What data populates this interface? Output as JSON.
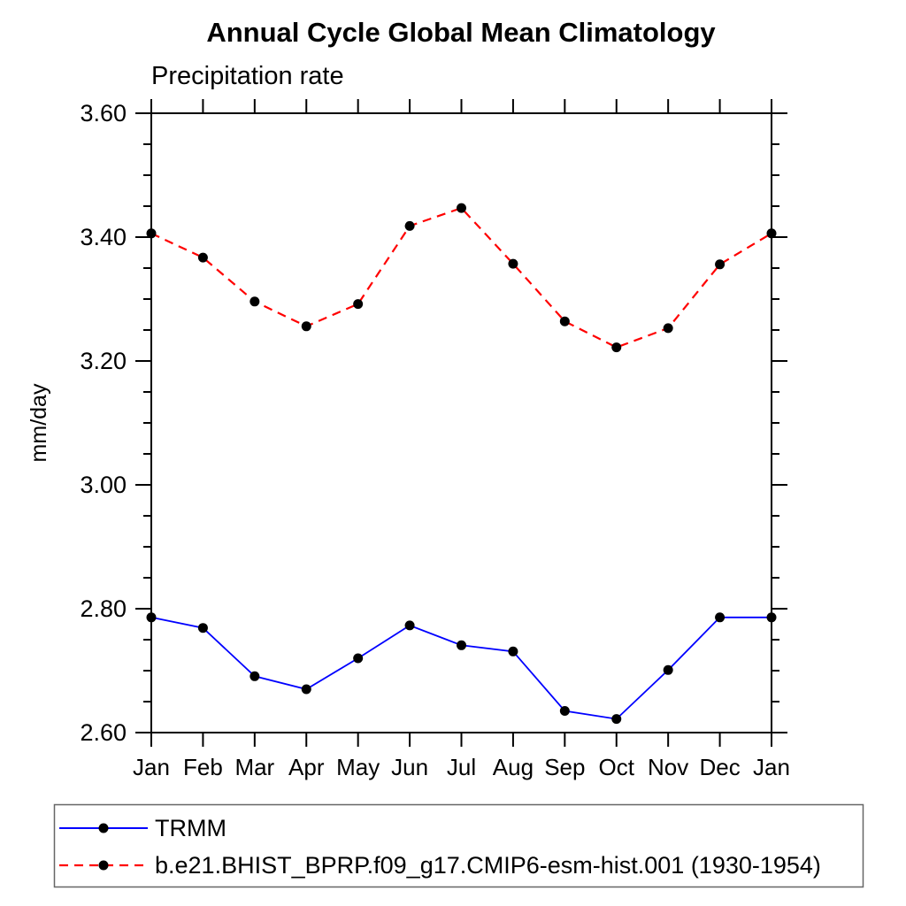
{
  "chart_data": {
    "type": "line",
    "title": "Annual Cycle Global Mean Climatology",
    "subtitle": "Precipitation rate",
    "ylabel": "mm/day",
    "xlabel": "",
    "categories": [
      "Jan",
      "Feb",
      "Mar",
      "Apr",
      "May",
      "Jun",
      "Jul",
      "Aug",
      "Sep",
      "Oct",
      "Nov",
      "Dec",
      "Jan"
    ],
    "series": [
      {
        "name": "TRMM",
        "color": "#0000ff",
        "style": "solid",
        "marker": "filled-circle",
        "marker_color": "#000000",
        "values": [
          2.786,
          2.769,
          2.691,
          2.67,
          2.72,
          2.773,
          2.741,
          2.731,
          2.635,
          2.622,
          2.701,
          2.786,
          2.786
        ]
      },
      {
        "name": "b.e21.BHIST_BPRP.f09_g17.CMIP6-esm-hist.001 (1930-1954)",
        "color": "#ff0000",
        "style": "dashed",
        "marker": "filled-circle",
        "marker_color": "#000000",
        "values": [
          3.406,
          3.367,
          3.296,
          3.256,
          3.292,
          3.418,
          3.447,
          3.357,
          3.264,
          3.222,
          3.253,
          3.356,
          3.406
        ]
      }
    ],
    "ylim": [
      2.6,
      3.6
    ],
    "y_major_step": 0.2,
    "y_minor_step": 0.05,
    "y_tick_labels": [
      "2.60",
      "2.80",
      "3.00",
      "3.20",
      "3.40",
      "3.60"
    ],
    "grid": false,
    "axis_color": "#000000",
    "legend_position": "bottom-left"
  }
}
